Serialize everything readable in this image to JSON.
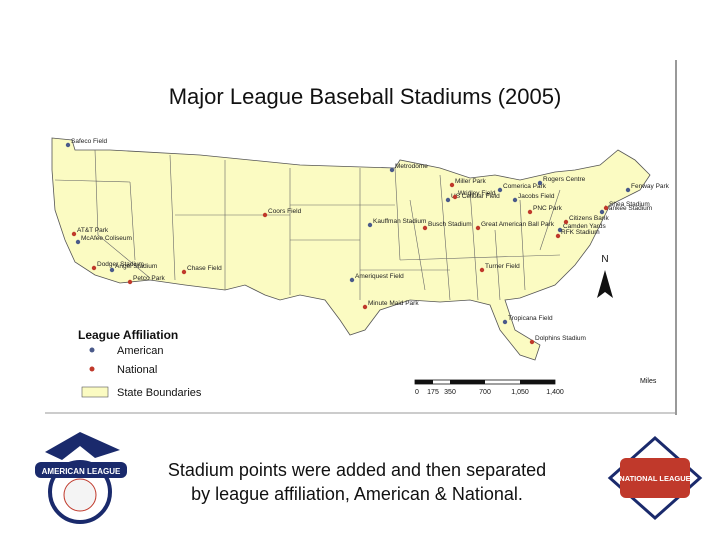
{
  "title": "Major League Baseball Stadiums (2005)",
  "legend": {
    "title": "League Affiliation",
    "items": [
      {
        "label": "American",
        "color": "#4a5a8a",
        "stadiums": [
          "Safeco Field",
          "McAfee Coliseum",
          "Angel Stadium",
          "Kauffman Stadium",
          "Metrodome",
          "US Cellular Field",
          "Comerica Park",
          "Jacobs Field",
          "Rogers Centre",
          "Fenway Park",
          "Yankee Stadium",
          "Camden Yards",
          "Ameriquest Field",
          "Tropicana Field"
        ]
      },
      {
        "label": "National",
        "color": "#c0392b",
        "stadiums": [
          "AT&T Park",
          "Dodger Stadium",
          "Petco Park",
          "Chase Field",
          "Coors Field",
          "Busch Stadium",
          "Miller Park",
          "Wrigley Field",
          "PNC Park",
          "Great American Ball Park",
          "Shea Stadium",
          "Citizens Bank",
          "RFK Stadium",
          "Turner Field",
          "Minute Maid Park",
          "Dolphins Stadium"
        ]
      }
    ],
    "boundary_label": "State Boundaries"
  },
  "scale": {
    "ticks": [
      "0",
      "175",
      "350",
      "700",
      "1,050",
      "1,400"
    ],
    "unit": "Miles"
  },
  "north": "N",
  "caption": [
    "Stadium points were added and then separated",
    "by league affiliation, American & National."
  ],
  "logos": {
    "american": "AMERICAN LEAGUE",
    "national": "NATIONAL LEAGUE"
  }
}
